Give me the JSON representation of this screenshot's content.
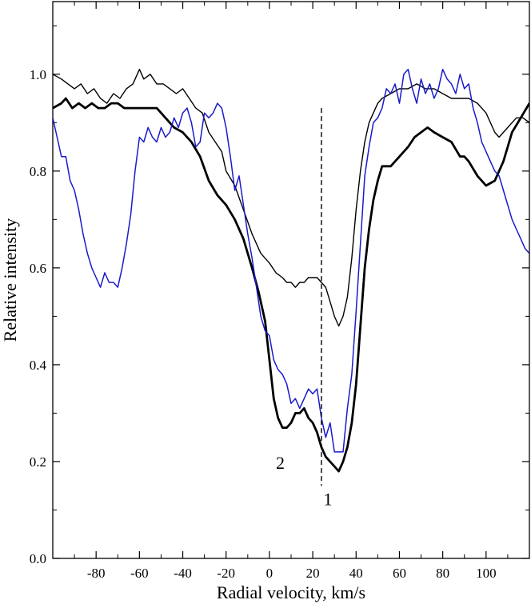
{
  "chart_data": {
    "type": "line",
    "title": "",
    "xlabel": "Radial velocity, km/s",
    "ylabel": "Relative intensity",
    "xlim": [
      -100,
      120
    ],
    "ylim": [
      0.0,
      1.15
    ],
    "x_ticks": [
      -80,
      -60,
      -40,
      -20,
      0,
      20,
      40,
      60,
      80,
      100
    ],
    "y_ticks": [
      0.0,
      0.2,
      0.4,
      0.6,
      0.8,
      1.0
    ],
    "x_tick_labels": [
      "-80",
      "-60",
      "-40",
      "-20",
      "0",
      "20",
      "40",
      "60",
      "80",
      "100"
    ],
    "y_tick_labels": [
      "0.0",
      "0.2",
      "0.4",
      "0.6",
      "0.8",
      "1.0"
    ],
    "grid": false,
    "legend": "none",
    "colors": {
      "thin_black": "#000000",
      "thick_black": "#000000",
      "blue": "#1a1acc",
      "reference_line": "#000000"
    },
    "series": [
      {
        "id": "thin-black",
        "style": "thin",
        "color": "#000000",
        "x": [
          -100,
          -96,
          -93,
          -90,
          -87,
          -84,
          -81,
          -78,
          -75,
          -72,
          -69,
          -66,
          -63,
          -60,
          -58,
          -55,
          -52,
          -49,
          -46,
          -43,
          -40,
          -37,
          -34,
          -31,
          -28,
          -25,
          -22,
          -20,
          -16,
          -12,
          -8,
          -4,
          0,
          3,
          6,
          8,
          10,
          12,
          14,
          16,
          18,
          20,
          22,
          24,
          26,
          28,
          30,
          32,
          34,
          36,
          38,
          40,
          42,
          44,
          46,
          48,
          50,
          52,
          56,
          60,
          64,
          68,
          72,
          76,
          80,
          84,
          88,
          92,
          96,
          100,
          104,
          106,
          110,
          114,
          117,
          120
        ],
        "y": [
          1.0,
          0.99,
          0.98,
          0.97,
          0.98,
          0.96,
          0.97,
          0.95,
          0.94,
          0.96,
          0.95,
          0.97,
          0.98,
          1.01,
          0.99,
          1.0,
          0.98,
          0.98,
          0.97,
          0.96,
          0.97,
          0.95,
          0.93,
          0.92,
          0.88,
          0.86,
          0.84,
          0.8,
          0.77,
          0.72,
          0.67,
          0.63,
          0.61,
          0.59,
          0.58,
          0.57,
          0.57,
          0.56,
          0.57,
          0.57,
          0.58,
          0.58,
          0.58,
          0.57,
          0.56,
          0.53,
          0.5,
          0.48,
          0.5,
          0.54,
          0.62,
          0.72,
          0.8,
          0.86,
          0.9,
          0.92,
          0.94,
          0.95,
          0.96,
          0.97,
          0.97,
          0.98,
          0.97,
          0.97,
          0.96,
          0.95,
          0.95,
          0.95,
          0.94,
          0.92,
          0.88,
          0.87,
          0.89,
          0.91,
          0.91,
          0.9
        ]
      },
      {
        "id": "thick-black",
        "style": "thick",
        "color": "#000000",
        "x": [
          -100,
          -96,
          -94,
          -91,
          -88,
          -85,
          -82,
          -79,
          -76,
          -73,
          -70,
          -67,
          -64,
          -60,
          -56,
          -52,
          -48,
          -44,
          -40,
          -36,
          -32,
          -28,
          -24,
          -20,
          -16,
          -12,
          -8,
          -5,
          -2,
          0,
          2,
          4,
          6,
          8,
          10,
          12,
          14,
          16,
          18,
          20,
          22,
          24,
          26,
          28,
          30,
          32,
          34,
          36,
          38,
          40,
          42,
          44,
          46,
          48,
          50,
          52,
          56,
          60,
          64,
          67,
          70,
          73,
          76,
          80,
          84,
          88,
          90,
          92,
          96,
          98,
          100,
          104,
          108,
          112,
          116,
          120
        ],
        "y": [
          0.93,
          0.94,
          0.95,
          0.93,
          0.94,
          0.93,
          0.94,
          0.93,
          0.93,
          0.94,
          0.94,
          0.93,
          0.93,
          0.93,
          0.93,
          0.93,
          0.91,
          0.89,
          0.88,
          0.86,
          0.83,
          0.78,
          0.75,
          0.73,
          0.7,
          0.66,
          0.6,
          0.55,
          0.49,
          0.41,
          0.33,
          0.29,
          0.27,
          0.27,
          0.28,
          0.3,
          0.3,
          0.31,
          0.29,
          0.28,
          0.26,
          0.23,
          0.21,
          0.2,
          0.19,
          0.18,
          0.2,
          0.23,
          0.28,
          0.36,
          0.48,
          0.6,
          0.68,
          0.74,
          0.78,
          0.81,
          0.81,
          0.83,
          0.85,
          0.87,
          0.88,
          0.89,
          0.88,
          0.87,
          0.86,
          0.83,
          0.83,
          0.82,
          0.79,
          0.78,
          0.77,
          0.78,
          0.82,
          0.88,
          0.91,
          0.94
        ]
      },
      {
        "id": "blue",
        "style": "medium",
        "color": "#1a1acc",
        "x": [
          -100,
          -98,
          -96,
          -94,
          -92,
          -90,
          -88,
          -86,
          -84,
          -82,
          -80,
          -78,
          -76,
          -74,
          -72,
          -70,
          -68,
          -66,
          -64,
          -62,
          -60,
          -58,
          -56,
          -54,
          -52,
          -50,
          -48,
          -46,
          -44,
          -42,
          -40,
          -38,
          -36,
          -34,
          -32,
          -30,
          -28,
          -26,
          -24,
          -22,
          -20,
          -18,
          -16,
          -14,
          -12,
          -10,
          -8,
          -6,
          -4,
          -2,
          0,
          2,
          4,
          6,
          8,
          10,
          12,
          14,
          16,
          18,
          20,
          22,
          24,
          26,
          28,
          30,
          32,
          34,
          36,
          38,
          40,
          42,
          44,
          46,
          48,
          50,
          52,
          54,
          56,
          58,
          60,
          62,
          64,
          66,
          68,
          70,
          72,
          74,
          76,
          78,
          80,
          82,
          84,
          86,
          88,
          90,
          92,
          94,
          96,
          98,
          100,
          102,
          104,
          106,
          108,
          110,
          112,
          114,
          116,
          118,
          120
        ],
        "y": [
          0.91,
          0.87,
          0.83,
          0.83,
          0.78,
          0.76,
          0.72,
          0.67,
          0.63,
          0.6,
          0.58,
          0.56,
          0.59,
          0.57,
          0.57,
          0.56,
          0.6,
          0.65,
          0.71,
          0.8,
          0.87,
          0.86,
          0.89,
          0.87,
          0.86,
          0.89,
          0.87,
          0.88,
          0.91,
          0.89,
          0.92,
          0.93,
          0.9,
          0.85,
          0.86,
          0.92,
          0.91,
          0.92,
          0.94,
          0.93,
          0.89,
          0.83,
          0.76,
          0.79,
          0.73,
          0.67,
          0.62,
          0.56,
          0.5,
          0.47,
          0.46,
          0.41,
          0.39,
          0.38,
          0.36,
          0.32,
          0.33,
          0.31,
          0.33,
          0.35,
          0.34,
          0.35,
          0.29,
          0.25,
          0.28,
          0.22,
          0.22,
          0.22,
          0.31,
          0.38,
          0.51,
          0.65,
          0.79,
          0.85,
          0.9,
          0.91,
          0.93,
          0.97,
          0.96,
          0.98,
          0.94,
          1.0,
          1.01,
          0.97,
          0.94,
          0.99,
          0.96,
          0.98,
          0.95,
          0.97,
          1.01,
          0.99,
          0.98,
          0.96,
          1.0,
          0.97,
          0.98,
          0.93,
          0.9,
          0.86,
          0.84,
          0.82,
          0.8,
          0.79,
          0.76,
          0.73,
          0.7,
          0.68,
          0.66,
          0.64,
          0.63
        ]
      }
    ],
    "reference_line": {
      "x": 24,
      "y_from": 0.15,
      "y_to": 0.93,
      "style": "dashed"
    },
    "annotations": [
      {
        "text": "2",
        "x": 5,
        "y": 0.185
      },
      {
        "text": "1",
        "x": 27,
        "y": 0.11
      }
    ]
  }
}
